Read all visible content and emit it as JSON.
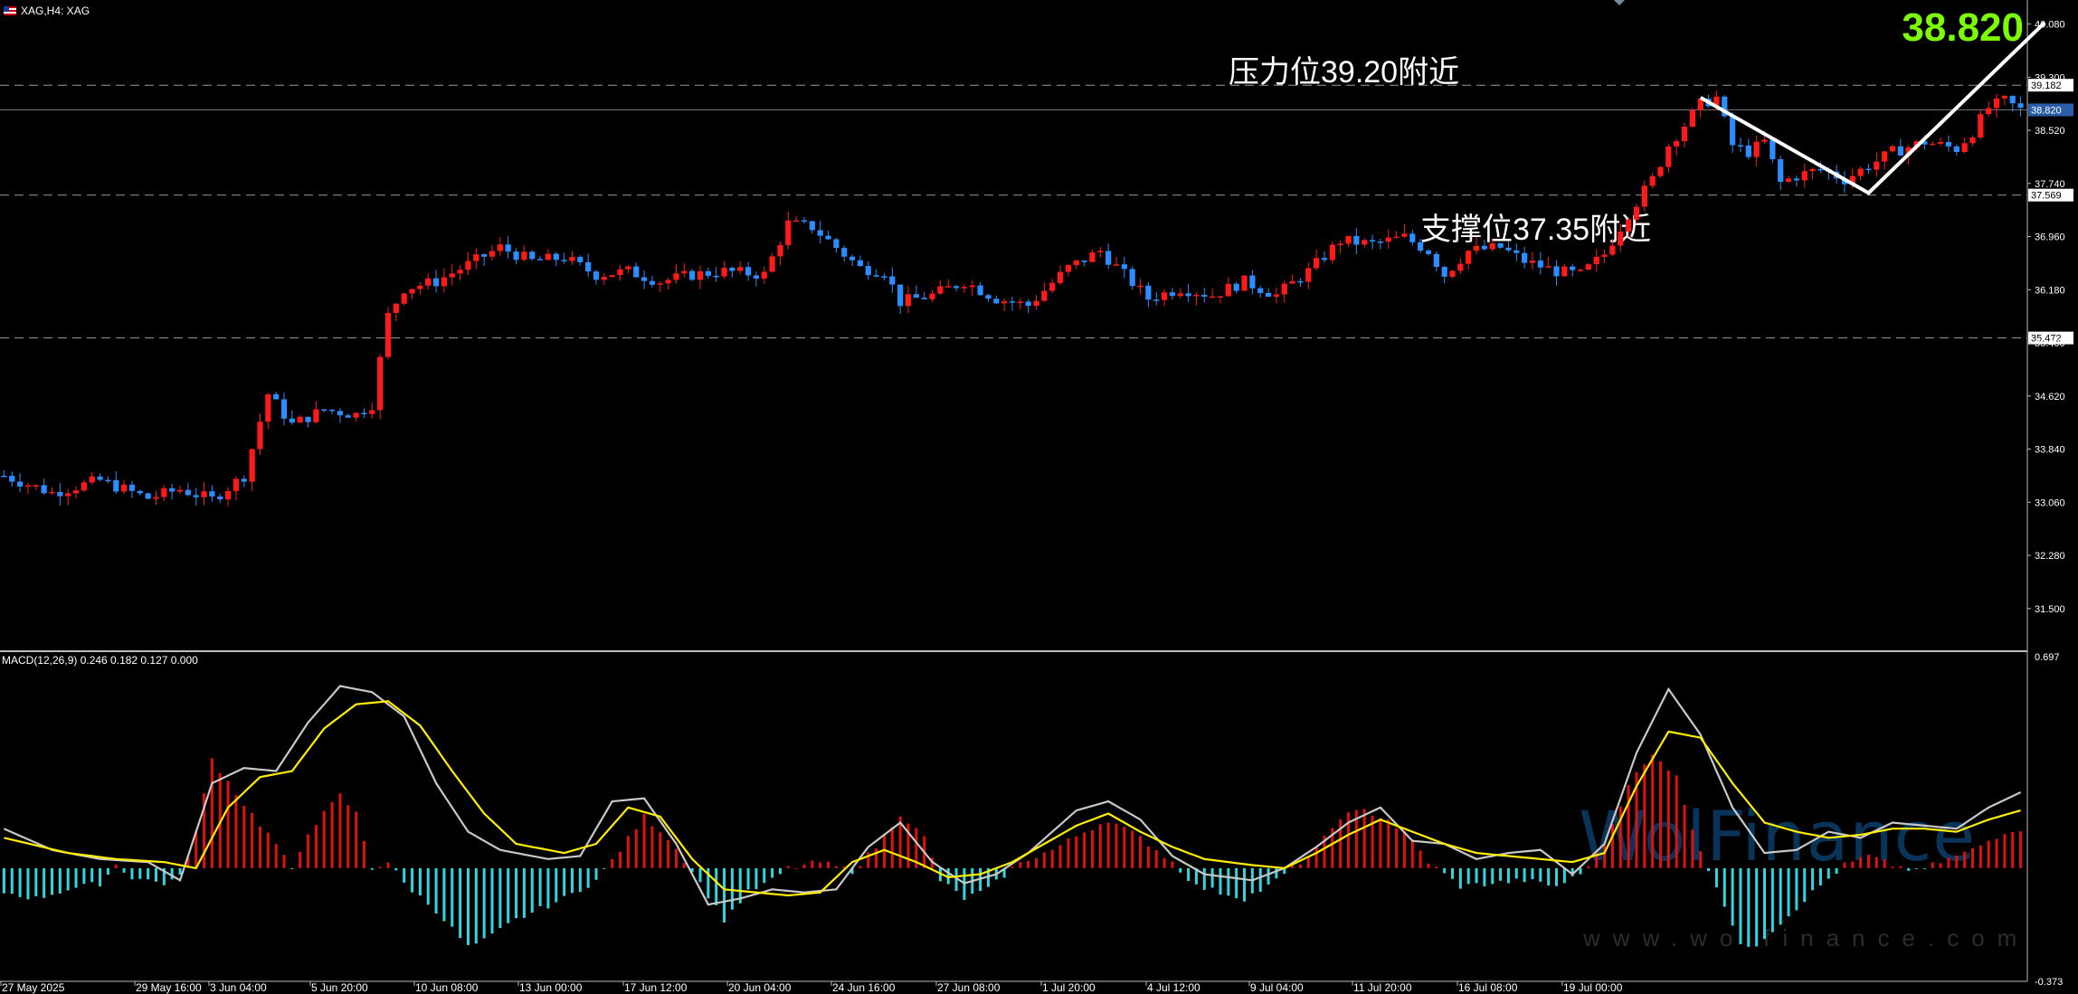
{
  "header": {
    "title": "XAG,H4:  XAG"
  },
  "big_price": "38.820",
  "annotations": {
    "resistance": "压力位39.20附近",
    "support": "支撑位37.35附近"
  },
  "macd_label": "MACD(12,26,9) 0.246 0.182 0.127 0.000",
  "watermark": {
    "brand": "WolFinance",
    "url": "www.wolfinance.com"
  },
  "colors": {
    "up": "#ff1a1a",
    "down": "#2d8cff",
    "macd_pos": "#e01010",
    "macd_neg": "#2fd6e0",
    "macd_line": "#c8c8c8",
    "signal_line": "#ffee00",
    "price_up_tag": "#2a5ea8",
    "accent": "#7cfc00"
  },
  "chart_data": [
    {
      "type": "candlestick",
      "title": "XAG,H4: XAG",
      "ylim": [
        30.9,
        40.3
      ],
      "y_ticks": [
        "40.080",
        "39.300",
        "38.520",
        "37.740",
        "36.960",
        "36.180",
        "35.400",
        "34.620",
        "33.840",
        "33.060",
        "32.280",
        "31.500"
      ],
      "levels": [
        {
          "value": 39.182,
          "label": "39.182"
        },
        {
          "value": 38.82,
          "label": "38.820"
        },
        {
          "value": 37.569,
          "label": "37.569"
        },
        {
          "value": 35.472,
          "label": "35.472"
        }
      ],
      "x_labels": [
        "27 May 2025",
        "29 May 16:00",
        "3 Jun 04:00",
        "5 Jun 20:00",
        "10 Jun 08:00",
        "13 Jun 00:00",
        "17 Jun 12:00",
        "20 Jun 04:00",
        "24 Jun 16:00",
        "27 Jun 08:00",
        "1 Jul 20:00",
        "4 Jul 12:00",
        "9 Jul 04:00",
        "11 Jul 20:00",
        "16 Jul 08:00",
        "19 Jul 00:00"
      ],
      "close_waypoints": [
        [
          0,
          33.45
        ],
        [
          6,
          33.2
        ],
        [
          12,
          33.38
        ],
        [
          18,
          33.12
        ],
        [
          22,
          33.25
        ],
        [
          26,
          33.1
        ],
        [
          30,
          33.45
        ],
        [
          33,
          34.65
        ],
        [
          36,
          34.2
        ],
        [
          40,
          34.42
        ],
        [
          44,
          34.35
        ],
        [
          46,
          34.5
        ],
        [
          48,
          35.8
        ],
        [
          50,
          36.2
        ],
        [
          54,
          36.3
        ],
        [
          58,
          36.55
        ],
        [
          62,
          36.8
        ],
        [
          66,
          36.6
        ],
        [
          70,
          36.65
        ],
        [
          74,
          36.4
        ],
        [
          78,
          36.45
        ],
        [
          82,
          36.3
        ],
        [
          86,
          36.4
        ],
        [
          90,
          36.45
        ],
        [
          95,
          36.4
        ],
        [
          98,
          37.15
        ],
        [
          101,
          37.1
        ],
        [
          104,
          36.8
        ],
        [
          107,
          36.5
        ],
        [
          110,
          36.45
        ],
        [
          112,
          36.0
        ],
        [
          116,
          36.1
        ],
        [
          120,
          36.3
        ],
        [
          124,
          36.05
        ],
        [
          128,
          35.95
        ],
        [
          133,
          36.5
        ],
        [
          137,
          36.75
        ],
        [
          140,
          36.4
        ],
        [
          143,
          36.05
        ],
        [
          147,
          36.2
        ],
        [
          151,
          36.1
        ],
        [
          155,
          36.3
        ],
        [
          159,
          36.1
        ],
        [
          163,
          36.45
        ],
        [
          167,
          36.9
        ],
        [
          171,
          36.85
        ],
        [
          175,
          36.95
        ],
        [
          178,
          36.75
        ],
        [
          180,
          36.4
        ],
        [
          183,
          36.75
        ],
        [
          187,
          36.8
        ],
        [
          190,
          36.6
        ],
        [
          194,
          36.45
        ],
        [
          197,
          36.4
        ],
        [
          200,
          36.7
        ],
        [
          203,
          37.3
        ],
        [
          206,
          37.8
        ],
        [
          208,
          38.3
        ],
        [
          210,
          38.6
        ],
        [
          212,
          38.9
        ],
        [
          214,
          39.0
        ],
        [
          216,
          38.3
        ],
        [
          218,
          38.2
        ],
        [
          220,
          38.35
        ],
        [
          222,
          37.75
        ],
        [
          224,
          37.85
        ],
        [
          227,
          37.95
        ],
        [
          230,
          37.8
        ],
        [
          233,
          38.0
        ],
        [
          236,
          38.2
        ],
        [
          240,
          38.35
        ],
        [
          244,
          38.25
        ],
        [
          246,
          38.5
        ],
        [
          248,
          38.85
        ],
        [
          250,
          38.95
        ],
        [
          252,
          38.82
        ]
      ],
      "annotation_path": {
        "points": [
          [
            212,
            39.0
          ],
          [
            233,
            37.6
          ],
          [
            255,
            40.1
          ]
        ]
      }
    },
    {
      "type": "macd",
      "ylim": [
        -0.373,
        0.697
      ],
      "y_ticks": [
        "0.697",
        "-0.373"
      ],
      "hist_waypoints": [
        [
          0,
          -0.08
        ],
        [
          4,
          -0.1
        ],
        [
          8,
          -0.07
        ],
        [
          12,
          -0.05
        ],
        [
          14,
          0.01
        ],
        [
          16,
          -0.03
        ],
        [
          20,
          -0.05
        ],
        [
          22,
          -0.03
        ],
        [
          24,
          0.12
        ],
        [
          26,
          0.36
        ],
        [
          30,
          0.21
        ],
        [
          34,
          0.08
        ],
        [
          36,
          -0.01
        ],
        [
          38,
          0.12
        ],
        [
          42,
          0.24
        ],
        [
          44,
          0.18
        ],
        [
          46,
          0.0
        ],
        [
          48,
          0.02
        ],
        [
          50,
          -0.05
        ],
        [
          54,
          -0.14
        ],
        [
          58,
          -0.26
        ],
        [
          60,
          -0.24
        ],
        [
          64,
          -0.17
        ],
        [
          70,
          -0.1
        ],
        [
          74,
          -0.04
        ],
        [
          77,
          0.06
        ],
        [
          80,
          0.17
        ],
        [
          83,
          0.1
        ],
        [
          86,
          -0.01
        ],
        [
          90,
          -0.17
        ],
        [
          93,
          -0.08
        ],
        [
          96,
          -0.04
        ],
        [
          98,
          0.0
        ],
        [
          102,
          0.02
        ],
        [
          106,
          -0.01
        ],
        [
          109,
          0.07
        ],
        [
          112,
          0.18
        ],
        [
          115,
          0.1
        ],
        [
          117,
          -0.04
        ],
        [
          120,
          -0.1
        ],
        [
          123,
          -0.07
        ],
        [
          126,
          0.0
        ],
        [
          128,
          0.03
        ],
        [
          131,
          0.06
        ],
        [
          135,
          0.12
        ],
        [
          138,
          0.16
        ],
        [
          142,
          0.1
        ],
        [
          146,
          0.02
        ],
        [
          149,
          -0.06
        ],
        [
          152,
          -0.08
        ],
        [
          155,
          -0.1
        ],
        [
          158,
          -0.06
        ],
        [
          161,
          0.0
        ],
        [
          164,
          0.06
        ],
        [
          167,
          0.17
        ],
        [
          170,
          0.19
        ],
        [
          173,
          0.16
        ],
        [
          176,
          0.09
        ],
        [
          178,
          0.02
        ],
        [
          182,
          -0.06
        ],
        [
          186,
          -0.05
        ],
        [
          190,
          -0.04
        ],
        [
          194,
          -0.06
        ],
        [
          197,
          -0.02
        ],
        [
          200,
          0.08
        ],
        [
          203,
          0.28
        ],
        [
          206,
          0.37
        ],
        [
          209,
          0.31
        ],
        [
          211,
          0.12
        ],
        [
          213,
          0.0
        ],
        [
          215,
          -0.12
        ],
        [
          217,
          -0.26
        ],
        [
          219,
          -0.25
        ],
        [
          222,
          -0.18
        ],
        [
          226,
          -0.08
        ],
        [
          230,
          0.01
        ],
        [
          233,
          0.04
        ],
        [
          236,
          0.01
        ],
        [
          239,
          -0.01
        ],
        [
          242,
          0.02
        ],
        [
          246,
          0.06
        ],
        [
          250,
          0.12
        ],
        [
          252,
          0.13
        ]
      ],
      "macd_waypoints": [
        [
          0,
          0.13
        ],
        [
          6,
          0.06
        ],
        [
          12,
          0.03
        ],
        [
          18,
          0.02
        ],
        [
          22,
          -0.04
        ],
        [
          26,
          0.28
        ],
        [
          30,
          0.33
        ],
        [
          34,
          0.32
        ],
        [
          38,
          0.48
        ],
        [
          42,
          0.6
        ],
        [
          46,
          0.58
        ],
        [
          50,
          0.5
        ],
        [
          54,
          0.28
        ],
        [
          58,
          0.12
        ],
        [
          62,
          0.06
        ],
        [
          68,
          0.03
        ],
        [
          72,
          0.04
        ],
        [
          76,
          0.22
        ],
        [
          80,
          0.23
        ],
        [
          84,
          0.08
        ],
        [
          88,
          -0.12
        ],
        [
          92,
          -0.1
        ],
        [
          96,
          -0.07
        ],
        [
          100,
          -0.08
        ],
        [
          104,
          -0.07
        ],
        [
          108,
          0.07
        ],
        [
          112,
          0.15
        ],
        [
          116,
          0.02
        ],
        [
          120,
          -0.05
        ],
        [
          124,
          -0.02
        ],
        [
          128,
          0.05
        ],
        [
          134,
          0.19
        ],
        [
          138,
          0.22
        ],
        [
          142,
          0.16
        ],
        [
          146,
          0.04
        ],
        [
          150,
          -0.02
        ],
        [
          156,
          -0.04
        ],
        [
          160,
          0.0
        ],
        [
          164,
          0.07
        ],
        [
          168,
          0.15
        ],
        [
          172,
          0.2
        ],
        [
          176,
          0.09
        ],
        [
          180,
          0.08
        ],
        [
          184,
          0.03
        ],
        [
          188,
          0.05
        ],
        [
          192,
          0.06
        ],
        [
          196,
          -0.02
        ],
        [
          200,
          0.08
        ],
        [
          204,
          0.38
        ],
        [
          208,
          0.59
        ],
        [
          212,
          0.44
        ],
        [
          216,
          0.2
        ],
        [
          220,
          0.05
        ],
        [
          224,
          0.06
        ],
        [
          228,
          0.12
        ],
        [
          232,
          0.1
        ],
        [
          236,
          0.15
        ],
        [
          240,
          0.14
        ],
        [
          244,
          0.13
        ],
        [
          248,
          0.2
        ],
        [
          252,
          0.25
        ]
      ],
      "signal_waypoints": [
        [
          0,
          0.1
        ],
        [
          8,
          0.05
        ],
        [
          14,
          0.03
        ],
        [
          20,
          0.02
        ],
        [
          24,
          0.0
        ],
        [
          28,
          0.2
        ],
        [
          32,
          0.3
        ],
        [
          36,
          0.32
        ],
        [
          40,
          0.46
        ],
        [
          44,
          0.54
        ],
        [
          48,
          0.55
        ],
        [
          52,
          0.47
        ],
        [
          56,
          0.32
        ],
        [
          60,
          0.18
        ],
        [
          64,
          0.08
        ],
        [
          70,
          0.05
        ],
        [
          74,
          0.08
        ],
        [
          78,
          0.2
        ],
        [
          82,
          0.17
        ],
        [
          86,
          0.03
        ],
        [
          90,
          -0.07
        ],
        [
          94,
          -0.08
        ],
        [
          98,
          -0.09
        ],
        [
          102,
          -0.08
        ],
        [
          106,
          0.02
        ],
        [
          110,
          0.06
        ],
        [
          114,
          0.02
        ],
        [
          118,
          -0.03
        ],
        [
          122,
          -0.02
        ],
        [
          126,
          0.02
        ],
        [
          130,
          0.08
        ],
        [
          134,
          0.14
        ],
        [
          138,
          0.18
        ],
        [
          142,
          0.12
        ],
        [
          146,
          0.07
        ],
        [
          150,
          0.03
        ],
        [
          156,
          0.01
        ],
        [
          160,
          0.0
        ],
        [
          164,
          0.05
        ],
        [
          168,
          0.11
        ],
        [
          172,
          0.16
        ],
        [
          176,
          0.12
        ],
        [
          180,
          0.08
        ],
        [
          184,
          0.05
        ],
        [
          188,
          0.04
        ],
        [
          192,
          0.03
        ],
        [
          196,
          0.02
        ],
        [
          200,
          0.05
        ],
        [
          204,
          0.27
        ],
        [
          208,
          0.45
        ],
        [
          212,
          0.43
        ],
        [
          216,
          0.28
        ],
        [
          220,
          0.15
        ],
        [
          224,
          0.12
        ],
        [
          228,
          0.1
        ],
        [
          232,
          0.11
        ],
        [
          236,
          0.13
        ],
        [
          240,
          0.13
        ],
        [
          244,
          0.12
        ],
        [
          248,
          0.16
        ],
        [
          252,
          0.19
        ]
      ]
    }
  ]
}
